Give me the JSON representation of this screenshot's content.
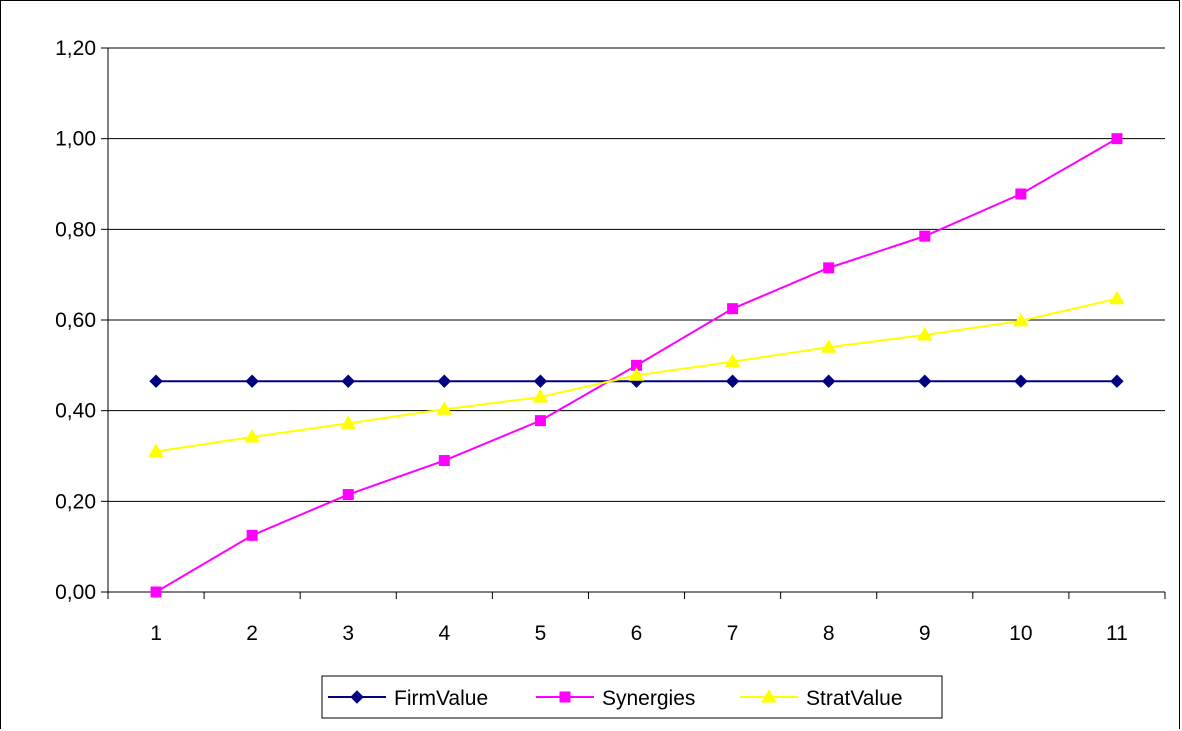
{
  "chart_data": {
    "type": "line",
    "title": "",
    "xlabel": "",
    "ylabel": "",
    "categories": [
      "1",
      "2",
      "3",
      "4",
      "5",
      "6",
      "7",
      "8",
      "9",
      "10",
      "11"
    ],
    "ylim": [
      0,
      1.2
    ],
    "yticks": [
      "0,00",
      "0,20",
      "0,40",
      "0,60",
      "0,80",
      "1,00",
      "1,20"
    ],
    "grid": true,
    "legend_position": "bottom",
    "series": [
      {
        "name": "FirmValue",
        "color": "#000080",
        "marker": "diamond",
        "values": [
          0.465,
          0.465,
          0.465,
          0.465,
          0.465,
          0.465,
          0.465,
          0.465,
          0.465,
          0.465,
          0.465
        ]
      },
      {
        "name": "Synergies",
        "color": "#FF00FF",
        "marker": "square",
        "values": [
          0.0,
          0.125,
          0.215,
          0.29,
          0.378,
          0.5,
          0.625,
          0.715,
          0.785,
          0.878,
          1.0
        ]
      },
      {
        "name": "StratValue",
        "color": "#FFFF00",
        "marker": "triangle",
        "values": [
          0.31,
          0.342,
          0.372,
          0.403,
          0.43,
          0.478,
          0.508,
          0.54,
          0.567,
          0.598,
          0.647
        ]
      }
    ]
  }
}
